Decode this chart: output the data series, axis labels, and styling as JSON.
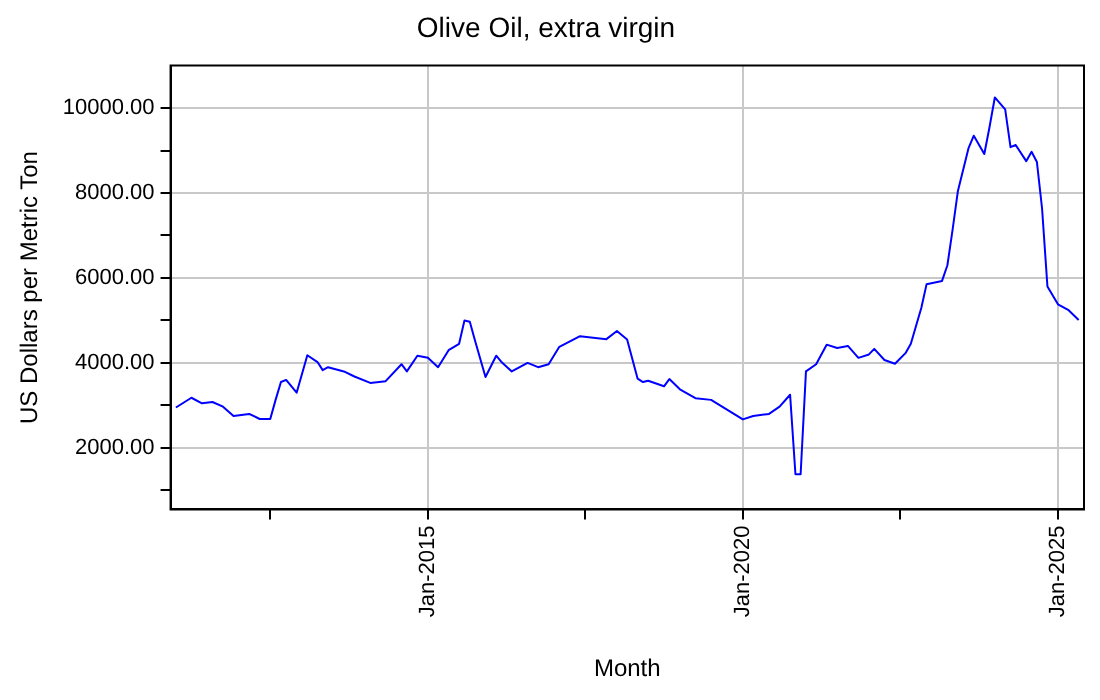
{
  "chart_data": {
    "type": "line",
    "title": "Olive Oil, extra virgin",
    "xlabel": "Month",
    "ylabel": "US Dollars per Metric Ton",
    "x": [
      "2011-01",
      "2011-04",
      "2011-06",
      "2011-08",
      "2011-10",
      "2011-12",
      "2012-03",
      "2012-05",
      "2012-07",
      "2012-08",
      "2012-09",
      "2012-10",
      "2012-12",
      "2013-02",
      "2013-04",
      "2013-05",
      "2013-06",
      "2013-09",
      "2013-11",
      "2014-02",
      "2014-05",
      "2014-08",
      "2014-09",
      "2014-11",
      "2015-01",
      "2015-03",
      "2015-05",
      "2015-07",
      "2015-08",
      "2015-09",
      "2015-10",
      "2015-12",
      "2016-02",
      "2016-03",
      "2016-05",
      "2016-08",
      "2016-10",
      "2016-12",
      "2017-02",
      "2017-06",
      "2017-11",
      "2018-01",
      "2018-03",
      "2018-05",
      "2018-06",
      "2018-07",
      "2018-10",
      "2018-11",
      "2019-01",
      "2019-04",
      "2019-07",
      "2019-10",
      "2020-01",
      "2020-03",
      "2020-06",
      "2020-08",
      "2020-10",
      "2020-11",
      "2020-12",
      "2021-01",
      "2021-03",
      "2021-05",
      "2021-07",
      "2021-09",
      "2021-11",
      "2022-01",
      "2022-02",
      "2022-04",
      "2022-06",
      "2022-08",
      "2022-09",
      "2022-11",
      "2022-12",
      "2023-03",
      "2023-04",
      "2023-05",
      "2023-06",
      "2023-08",
      "2023-09",
      "2023-11",
      "2023-12",
      "2024-01",
      "2024-03",
      "2024-04",
      "2024-05",
      "2024-07",
      "2024-08",
      "2024-09",
      "2024-10",
      "2024-11",
      "2025-01",
      "2025-03",
      "2025-05"
    ],
    "series": [
      {
        "color": "#0000ff",
        "values": [
          2950,
          3180,
          3050,
          3080,
          2970,
          2750,
          2800,
          2680,
          2680,
          3130,
          3550,
          3600,
          3300,
          4180,
          4020,
          3830,
          3900,
          3800,
          3680,
          3530,
          3570,
          3970,
          3800,
          4170,
          4120,
          3900,
          4300,
          4450,
          5000,
          4970,
          4530,
          3670,
          4170,
          4030,
          3800,
          4000,
          3900,
          3970,
          4380,
          4630,
          4560,
          4750,
          4550,
          3630,
          3550,
          3580,
          3450,
          3620,
          3380,
          3170,
          3130,
          2900,
          2670,
          2750,
          2800,
          2970,
          3250,
          1380,
          1380,
          3800,
          3970,
          4430,
          4350,
          4400,
          4120,
          4200,
          4330,
          4070,
          3980,
          4230,
          4450,
          5300,
          5850,
          5930,
          6300,
          7130,
          8050,
          9050,
          9350,
          8920,
          9550,
          10250,
          9970,
          9080,
          9130,
          8750,
          8970,
          8730,
          7630,
          5800,
          5380,
          5250,
          5010
        ]
      }
    ],
    "xlim": [
      "2010-12",
      "2025-06"
    ],
    "xticks": [
      {
        "value": "2012-07",
        "label": null
      },
      {
        "value": "2015-01",
        "label": "Jan-2015"
      },
      {
        "value": "2017-07",
        "label": null
      },
      {
        "value": "2020-01",
        "label": "Jan-2020"
      },
      {
        "value": "2022-07",
        "label": null
      },
      {
        "value": "2025-01",
        "label": "Jan-2025"
      }
    ],
    "ylim": [
      550,
      11000
    ],
    "yticks": [
      {
        "value": 1000,
        "label": null
      },
      {
        "value": 2000,
        "label": "2000.00"
      },
      {
        "value": 3000,
        "label": null
      },
      {
        "value": 4000,
        "label": "4000.00"
      },
      {
        "value": 5000,
        "label": null
      },
      {
        "value": 6000,
        "label": "6000.00"
      },
      {
        "value": 7000,
        "label": null
      },
      {
        "value": 8000,
        "label": "8000.00"
      },
      {
        "value": 9000,
        "label": null
      },
      {
        "value": 10000,
        "label": "10000.00"
      }
    ],
    "grid": true,
    "legend": false,
    "marker": "none",
    "line_style": "solid"
  }
}
